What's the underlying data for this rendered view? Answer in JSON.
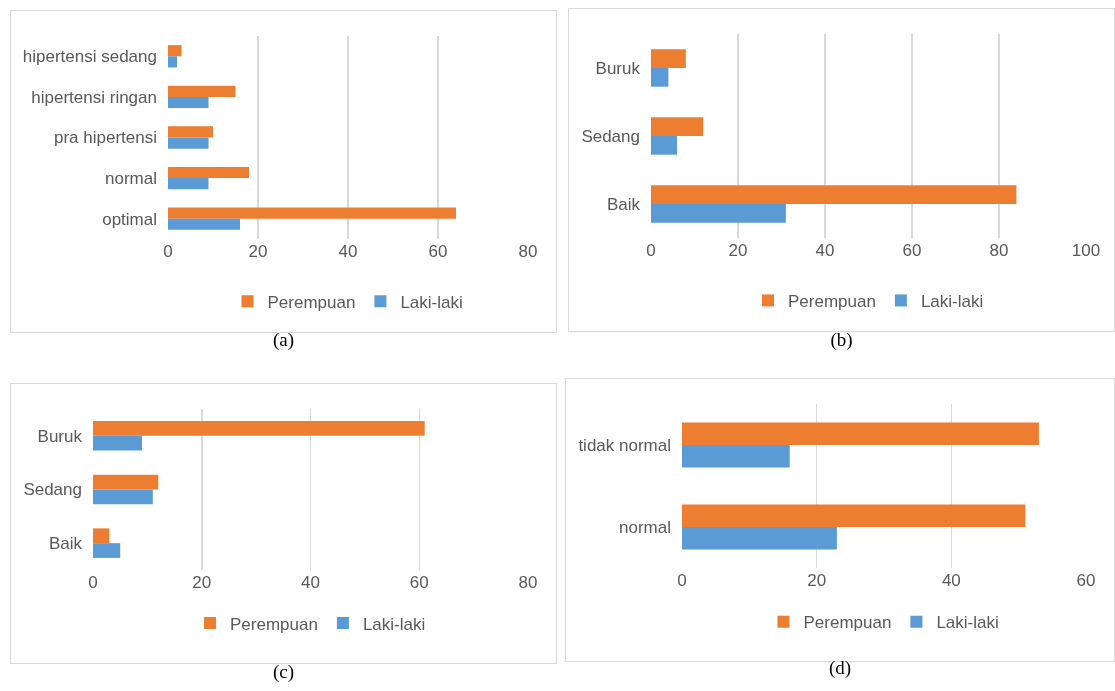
{
  "chart_data": [
    {
      "type": "bar",
      "orientation": "horizontal",
      "categories": [
        "hipertensi sedang",
        "hipertensi ringan",
        "pra hipertensi",
        "normal",
        "optimal"
      ],
      "series": [
        {
          "name": "Perempuan",
          "color": "#ed7d31",
          "values": [
            3,
            15,
            10,
            18,
            64
          ]
        },
        {
          "name": "Laki-laki",
          "color": "#5b9bd5",
          "values": [
            2,
            9,
            9,
            9,
            16
          ]
        }
      ],
      "xlim": [
        0,
        80
      ],
      "xticks": [
        0,
        20,
        40,
        60,
        80
      ],
      "grid": "x",
      "legend": "bottom",
      "annotations": [
        "(a)"
      ]
    },
    {
      "type": "bar",
      "orientation": "horizontal",
      "categories": [
        "Buruk",
        "Sedang",
        "Baik"
      ],
      "series": [
        {
          "name": "Perempuan",
          "color": "#ed7d31",
          "values": [
            8,
            12,
            84
          ]
        },
        {
          "name": "Laki-laki",
          "color": "#5b9bd5",
          "values": [
            4,
            6,
            31
          ]
        }
      ],
      "xlim": [
        0,
        100
      ],
      "xticks": [
        0,
        20,
        40,
        60,
        80,
        100
      ],
      "grid": "x",
      "legend": "bottom",
      "annotations": [
        "(b)"
      ]
    },
    {
      "type": "bar",
      "orientation": "horizontal",
      "categories": [
        "Buruk",
        "Sedang",
        "Baik"
      ],
      "series": [
        {
          "name": "Perempuan",
          "color": "#ed7d31",
          "values": [
            61,
            12,
            3
          ]
        },
        {
          "name": "Laki-laki",
          "color": "#5b9bd5",
          "values": [
            9,
            11,
            5
          ]
        }
      ],
      "xlim": [
        0,
        80
      ],
      "xticks": [
        0,
        20,
        40,
        60,
        80
      ],
      "grid": "x",
      "legend": "bottom",
      "annotations": [
        "(c)"
      ]
    },
    {
      "type": "bar",
      "orientation": "horizontal",
      "categories": [
        "tidak normal",
        "normal"
      ],
      "series": [
        {
          "name": "Perempuan",
          "color": "#ed7d31",
          "values": [
            53,
            51
          ]
        },
        {
          "name": "Laki-laki",
          "color": "#5b9bd5",
          "values": [
            16,
            23
          ]
        }
      ],
      "xlim": [
        0,
        60
      ],
      "xticks": [
        0,
        20,
        40,
        60
      ],
      "grid": "x",
      "legend": "bottom",
      "annotations": [
        "(d)"
      ]
    }
  ]
}
